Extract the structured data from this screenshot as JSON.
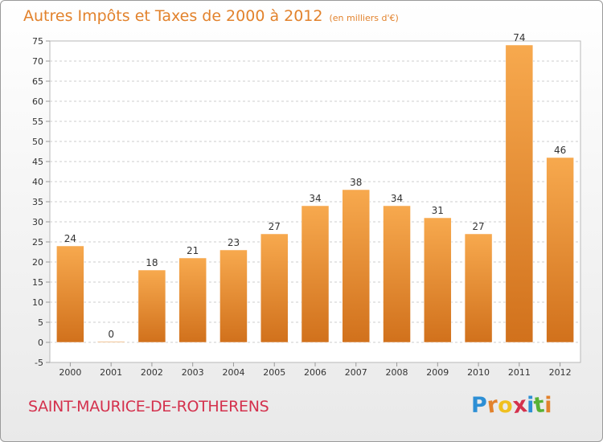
{
  "title": "Autres Impôts et Taxes de 2000 à 2012",
  "subtitle": "(en milliers d'€)",
  "commune": "SAINT-MAURICE-DE-ROTHERENS",
  "logo": {
    "letters": [
      "P",
      "r",
      "o",
      "x",
      "i",
      "t",
      "i"
    ],
    "colors": [
      "#2d8fd5",
      "#e2822c",
      "#f0c020",
      "#d4314d",
      "#2d8fd5",
      "#58b134",
      "#e2822c"
    ]
  },
  "colors": {
    "bar_light": "#f7a94e",
    "bar_dark": "#d1711c",
    "title": "#e2822c",
    "commune": "#d4314d",
    "grid": "#cccccc"
  },
  "chart_data": {
    "type": "bar",
    "categories": [
      "2000",
      "2001",
      "2002",
      "2003",
      "2004",
      "2005",
      "2006",
      "2007",
      "2008",
      "2009",
      "2010",
      "2011",
      "2012"
    ],
    "values": [
      24,
      0,
      18,
      21,
      23,
      27,
      34,
      38,
      34,
      31,
      27,
      74,
      46
    ],
    "title": "Autres Impôts et Taxes de 2000 à 2012",
    "subtitle": "(en milliers d'€)",
    "xlabel": "",
    "ylabel": "",
    "ylim": [
      -5,
      75
    ],
    "yticks": [
      -5,
      0,
      5,
      10,
      15,
      20,
      25,
      30,
      35,
      40,
      45,
      50,
      55,
      60,
      65,
      70,
      75
    ],
    "grid": "horizontal dashed",
    "data_labels": true
  }
}
